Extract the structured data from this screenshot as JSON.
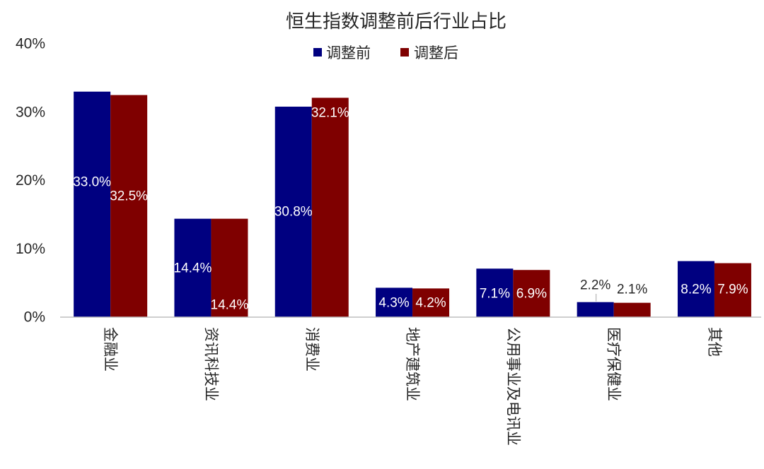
{
  "chart_data": {
    "type": "bar",
    "title": "恒生指数调整前后行业占比",
    "categories": [
      "金融业",
      "资讯科技业",
      "消费业",
      "地产建筑业",
      "公用事业及电讯业",
      "医疗保健业",
      "其他"
    ],
    "series": [
      {
        "name": "调整前",
        "color": "#000080",
        "values": [
          33.0,
          14.4,
          30.8,
          4.3,
          7.1,
          2.2,
          8.2
        ],
        "data_labels": [
          "33.0%",
          "14.4%",
          "30.8%",
          "4.3%",
          "7.1%",
          "2.2%",
          "8.2%"
        ]
      },
      {
        "name": "调整后",
        "color": "#7f0000",
        "values": [
          32.5,
          14.4,
          32.1,
          4.2,
          6.9,
          2.1,
          7.9
        ],
        "data_labels": [
          "32.5%",
          "14.4%",
          "32.1%",
          "4.2%",
          "6.9%",
          "2.1%",
          "7.9%"
        ]
      }
    ],
    "ylim": [
      0,
      40
    ],
    "ytick_values": [
      0,
      10,
      20,
      30,
      40
    ],
    "ytick_labels": [
      "0%",
      "10%",
      "20%",
      "30%",
      "40%"
    ],
    "grid": false,
    "legend": "top-center",
    "axis_color": "#bfbfbf"
  }
}
